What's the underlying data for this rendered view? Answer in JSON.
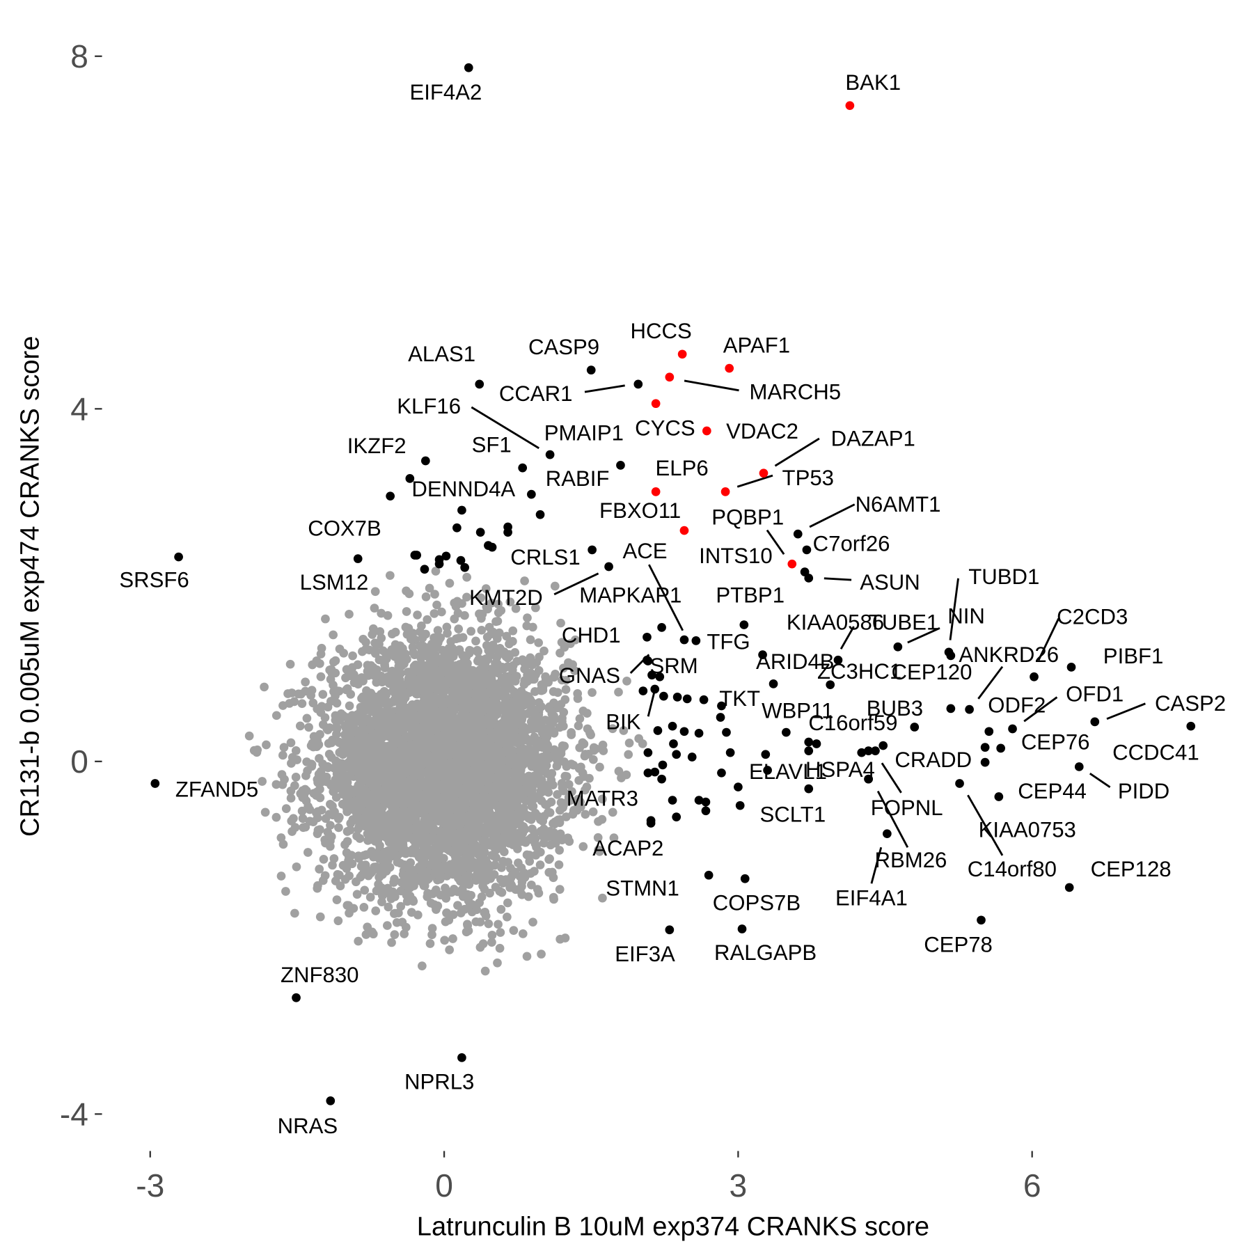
{
  "chart_data": {
    "type": "scatter",
    "title": "",
    "xlabel": "Latrunculin B 10uM exp374 CRANKS score",
    "ylabel": "CR131-b 0.005uM exp474 CRANKS score",
    "xlim": [
      -3.5,
      8
    ],
    "ylim": [
      -4.4,
      8.3
    ],
    "xticks": [
      -3,
      0,
      3,
      6
    ],
    "yticks": [
      -4,
      0,
      4,
      8
    ],
    "grid": false,
    "colors": {
      "background": "#A0A0A0",
      "hit": "#000000",
      "highlight": "#FF0000"
    },
    "background_genes": {
      "count": 4500,
      "mean_x": 0.0,
      "mean_y": -0.05,
      "sd_x": 0.62,
      "sd_y": 0.72
    },
    "labeled_points": [
      {
        "gene": "EIF4A2",
        "x": 0.25,
        "y": 7.87,
        "group": "hit"
      },
      {
        "gene": "BAK1",
        "x": 4.14,
        "y": 7.44,
        "group": "highlight"
      },
      {
        "gene": "HCCS",
        "x": 2.43,
        "y": 4.62,
        "group": "highlight"
      },
      {
        "gene": "APAF1",
        "x": 2.91,
        "y": 4.46,
        "group": "highlight"
      },
      {
        "gene": "MARCH5",
        "x": 2.3,
        "y": 4.36,
        "group": "highlight"
      },
      {
        "gene": "CYCS",
        "x": 2.16,
        "y": 4.06,
        "group": "highlight"
      },
      {
        "gene": "VDAC2",
        "x": 2.68,
        "y": 3.75,
        "group": "highlight"
      },
      {
        "gene": "DAZAP1",
        "x": 3.26,
        "y": 3.27,
        "group": "highlight"
      },
      {
        "gene": "TP53",
        "x": 2.87,
        "y": 3.06,
        "group": "highlight"
      },
      {
        "gene": "ELP6",
        "x": 2.16,
        "y": 3.06,
        "group": "highlight"
      },
      {
        "gene": "FBXO11",
        "x": 2.45,
        "y": 2.62,
        "group": "highlight"
      },
      {
        "gene": "PQBP1",
        "x": 3.55,
        "y": 2.24,
        "group": "highlight"
      },
      {
        "gene": "INTS10",
        "x": 3.68,
        "y": 2.15,
        "group": "hit"
      },
      {
        "gene": "N6AMT1",
        "x": 3.61,
        "y": 2.58,
        "group": "hit"
      },
      {
        "gene": "C7orf26",
        "x": 3.7,
        "y": 2.4,
        "group": "hit"
      },
      {
        "gene": "ASUN",
        "x": 3.72,
        "y": 2.08,
        "group": "hit"
      },
      {
        "gene": "CASP9",
        "x": 1.5,
        "y": 4.44,
        "group": "hit"
      },
      {
        "gene": "CCAR1",
        "x": 1.98,
        "y": 4.28,
        "group": "hit"
      },
      {
        "gene": "ALAS1",
        "x": 0.36,
        "y": 4.28,
        "group": "hit"
      },
      {
        "gene": "KLF16",
        "x": 1.08,
        "y": 3.48,
        "group": "hit"
      },
      {
        "gene": "PMAIP1",
        "x": 1.8,
        "y": 3.36,
        "group": "hit"
      },
      {
        "gene": "SF1",
        "x": 0.8,
        "y": 3.33,
        "group": "hit"
      },
      {
        "gene": "RABIF",
        "x": 0.89,
        "y": 3.03,
        "group": "hit"
      },
      {
        "gene": "IKZF2",
        "x": -0.19,
        "y": 3.41,
        "group": "hit"
      },
      {
        "gene": "DENND4A",
        "x": -0.35,
        "y": 3.21,
        "group": "hit"
      },
      {
        "gene": "COX7B",
        "x": -0.88,
        "y": 2.3,
        "group": "hit"
      },
      {
        "gene": "SRSF6",
        "x": -2.71,
        "y": 2.32,
        "group": "hit"
      },
      {
        "gene": "LSM12",
        "x": -0.3,
        "y": 2.34,
        "group": "hit"
      },
      {
        "gene": "CRLS1",
        "x": 1.51,
        "y": 2.4,
        "group": "hit"
      },
      {
        "gene": "KMT2D",
        "x": 1.68,
        "y": 2.21,
        "group": "hit"
      },
      {
        "gene": "ACE",
        "x": 2.45,
        "y": 1.38,
        "group": "hit"
      },
      {
        "gene": "MAPKAP1",
        "x": 2.22,
        "y": 1.52,
        "group": "hit"
      },
      {
        "gene": "PTBP1",
        "x": 3.06,
        "y": 1.55,
        "group": "hit"
      },
      {
        "gene": "TFG",
        "x": 2.57,
        "y": 1.37,
        "group": "hit"
      },
      {
        "gene": "KIAA0586",
        "x": 4.02,
        "y": 1.15,
        "group": "hit"
      },
      {
        "gene": "TUBE1",
        "x": 4.63,
        "y": 1.3,
        "group": "hit"
      },
      {
        "gene": "NIN",
        "x": 5.15,
        "y": 1.24,
        "group": "hit"
      },
      {
        "gene": "TUBD1",
        "x": 5.17,
        "y": 1.2,
        "group": "hit"
      },
      {
        "gene": "CHD1",
        "x": 2.07,
        "y": 1.41,
        "group": "hit"
      },
      {
        "gene": "GNAS",
        "x": 2.07,
        "y": 1.15,
        "group": "hit"
      },
      {
        "gene": "SRM",
        "x": 2.2,
        "y": 0.96,
        "group": "hit"
      },
      {
        "gene": "ARID4B",
        "x": 3.25,
        "y": 1.21,
        "group": "hit"
      },
      {
        "gene": "ZC3HC1",
        "x": 3.94,
        "y": 0.87,
        "group": "hit"
      },
      {
        "gene": "CEP120",
        "x": 5.17,
        "y": 0.6,
        "group": "hit"
      },
      {
        "gene": "ANKRD26",
        "x": 5.36,
        "y": 0.59,
        "group": "hit"
      },
      {
        "gene": "C2CD3",
        "x": 6.02,
        "y": 0.96,
        "group": "hit"
      },
      {
        "gene": "PIBF1",
        "x": 6.4,
        "y": 1.07,
        "group": "hit"
      },
      {
        "gene": "OFD1",
        "x": 5.8,
        "y": 0.37,
        "group": "hit"
      },
      {
        "gene": "ODF2",
        "x": 5.56,
        "y": 0.34,
        "group": "hit"
      },
      {
        "gene": "CASP2",
        "x": 6.64,
        "y": 0.45,
        "group": "hit"
      },
      {
        "gene": "CCDC41",
        "x": 7.62,
        "y": 0.4,
        "group": "hit"
      },
      {
        "gene": "CEP76",
        "x": 5.68,
        "y": 0.15,
        "group": "hit"
      },
      {
        "gene": "PIDD",
        "x": 6.48,
        "y": -0.06,
        "group": "hit"
      },
      {
        "gene": "CEP44",
        "x": 5.66,
        "y": -0.4,
        "group": "hit"
      },
      {
        "gene": "CRADD",
        "x": 5.52,
        "y": -0.01,
        "group": "hit"
      },
      {
        "gene": "KIAA0753",
        "x": 5.52,
        "y": 0.16,
        "group": "hit"
      },
      {
        "gene": "C14orf80",
        "x": 5.26,
        "y": -0.25,
        "group": "hit"
      },
      {
        "gene": "CEP128",
        "x": 6.38,
        "y": -1.43,
        "group": "hit"
      },
      {
        "gene": "CEP78",
        "x": 5.48,
        "y": -1.8,
        "group": "hit"
      },
      {
        "gene": "BUB3",
        "x": 4.8,
        "y": 0.39,
        "group": "hit"
      },
      {
        "gene": "C16orf59",
        "x": 4.48,
        "y": 0.18,
        "group": "hit"
      },
      {
        "gene": "WBP11",
        "x": 3.49,
        "y": 0.33,
        "group": "hit"
      },
      {
        "gene": "TKT",
        "x": 2.82,
        "y": 0.5,
        "group": "hit"
      },
      {
        "gene": "BIK",
        "x": 2.15,
        "y": 0.82,
        "group": "hit"
      },
      {
        "gene": "HSPA4",
        "x": 4.33,
        "y": -0.2,
        "group": "hit"
      },
      {
        "gene": "ELAVL1",
        "x": 3.72,
        "y": -0.31,
        "group": "hit"
      },
      {
        "gene": "FOPNL",
        "x": 4.4,
        "y": 0.12,
        "group": "hit"
      },
      {
        "gene": "RBM26",
        "x": 4.33,
        "y": -0.2,
        "group": "hit"
      },
      {
        "gene": "EIF4A1",
        "x": 4.52,
        "y": -0.82,
        "group": "hit"
      },
      {
        "gene": "MATR3",
        "x": 2.11,
        "y": -0.67,
        "group": "hit"
      },
      {
        "gene": "SCLT1",
        "x": 3.02,
        "y": -0.5,
        "group": "hit"
      },
      {
        "gene": "ACAP2",
        "x": 2.11,
        "y": -0.7,
        "group": "hit"
      },
      {
        "gene": "STMN1",
        "x": 2.7,
        "y": -1.29,
        "group": "hit"
      },
      {
        "gene": "COPS7B",
        "x": 3.07,
        "y": -1.33,
        "group": "hit"
      },
      {
        "gene": "EIF3A",
        "x": 2.3,
        "y": -1.91,
        "group": "hit"
      },
      {
        "gene": "RALGAPB",
        "x": 3.04,
        "y": -1.9,
        "group": "hit"
      },
      {
        "gene": "ZFAND5",
        "x": -2.95,
        "y": -0.25,
        "group": "hit"
      },
      {
        "gene": "ZNF830",
        "x": -1.51,
        "y": -2.68,
        "group": "hit"
      },
      {
        "gene": "NPRL3",
        "x": 0.18,
        "y": -3.36,
        "group": "hit"
      },
      {
        "gene": "NRAS",
        "x": -1.16,
        "y": -3.85,
        "group": "hit"
      }
    ],
    "unlabeled_hits": [
      [
        -0.55,
        3.01
      ],
      [
        0.18,
        2.85
      ],
      [
        0.13,
        2.65
      ],
      [
        0.37,
        2.6
      ],
      [
        0.45,
        2.45
      ],
      [
        0.49,
        2.43
      ],
      [
        0.65,
        2.66
      ],
      [
        0.65,
        2.6
      ],
      [
        0.98,
        2.8
      ],
      [
        -0.28,
        2.34
      ],
      [
        -0.05,
        2.29
      ],
      [
        0.02,
        2.33
      ],
      [
        0.17,
        2.28
      ],
      [
        0.21,
        2.2
      ],
      [
        -0.2,
        2.18
      ],
      [
        -0.05,
        2.24
      ],
      [
        2.08,
        1.14
      ],
      [
        2.12,
        0.98
      ],
      [
        2.03,
        0.8
      ],
      [
        2.24,
        0.74
      ],
      [
        2.38,
        0.73
      ],
      [
        2.48,
        0.71
      ],
      [
        2.65,
        0.7
      ],
      [
        2.18,
        0.35
      ],
      [
        2.33,
        0.4
      ],
      [
        2.45,
        0.34
      ],
      [
        2.6,
        0.32
      ],
      [
        2.34,
        0.2
      ],
      [
        2.37,
        0.08
      ],
      [
        2.53,
        0.05
      ],
      [
        2.08,
        0.1
      ],
      [
        2.23,
        -0.04
      ],
      [
        2.15,
        -0.12
      ],
      [
        2.08,
        -0.13
      ],
      [
        2.22,
        -0.2
      ],
      [
        2.33,
        -0.44
      ],
      [
        2.6,
        -0.44
      ],
      [
        2.67,
        -0.46
      ],
      [
        2.67,
        -0.56
      ],
      [
        2.37,
        -0.63
      ],
      [
        2.83,
        -0.13
      ],
      [
        3.28,
        0.08
      ],
      [
        3.36,
        0.88
      ],
      [
        3.72,
        0.22
      ],
      [
        3.8,
        0.2
      ],
      [
        3.72,
        0.12
      ],
      [
        2.88,
        0.33
      ],
      [
        2.92,
        0.1
      ],
      [
        2.83,
        0.63
      ],
      [
        3.3,
        -0.1
      ],
      [
        3.0,
        -0.29
      ],
      [
        4.33,
        0.12
      ],
      [
        4.26,
        0.1
      ]
    ]
  }
}
